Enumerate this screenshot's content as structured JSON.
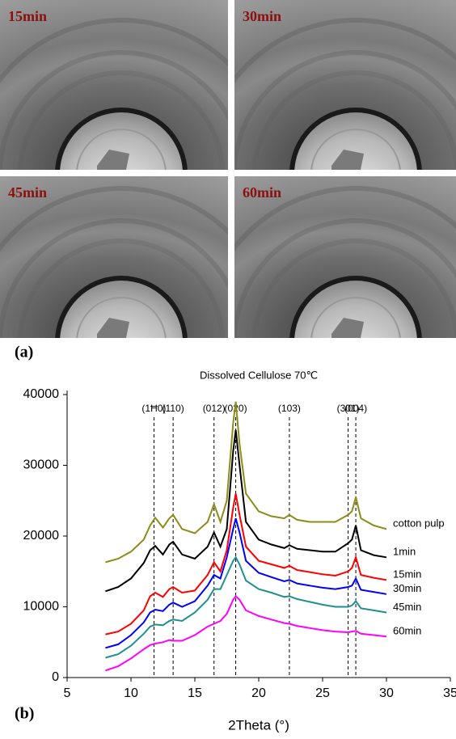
{
  "images": [
    {
      "label": "15min"
    },
    {
      "label": "30min"
    },
    {
      "label": "45min"
    },
    {
      "label": "60min"
    }
  ],
  "figure_labels": {
    "a": "(a)",
    "b": "(b)"
  },
  "chart_data": {
    "type": "line",
    "title": "Dissolved Cellulose 70℃",
    "x_label": "2Theta (°)",
    "x": [
      8,
      9,
      10,
      11,
      11.5,
      11.9,
      12.5,
      13,
      13.3,
      14,
      15,
      16,
      16.5,
      17,
      17.5,
      18,
      18.2,
      18.5,
      19,
      20,
      21,
      22,
      22.4,
      23,
      24,
      25,
      26,
      27,
      27.3,
      27.6,
      28,
      29,
      30
    ],
    "series": [
      {
        "name": "cotton pulp",
        "color": "#8c8c1a",
        "values": [
          16300,
          16800,
          17800,
          19500,
          21500,
          22600,
          21200,
          22500,
          23000,
          21000,
          20400,
          22000,
          24500,
          22000,
          25000,
          36000,
          39000,
          33000,
          26000,
          23500,
          22800,
          22500,
          23000,
          22300,
          22000,
          22000,
          22000,
          23000,
          23500,
          25500,
          22500,
          21500,
          21000
        ]
      },
      {
        "name": "1min",
        "color": "#000000",
        "values": [
          12200,
          12800,
          14000,
          16200,
          18000,
          18600,
          17400,
          18800,
          19200,
          17400,
          16800,
          18500,
          20500,
          18500,
          21000,
          32000,
          35000,
          30000,
          22000,
          19500,
          18800,
          18300,
          18700,
          18200,
          18000,
          17800,
          17800,
          19000,
          19500,
          21500,
          18000,
          17300,
          17000
        ]
      },
      {
        "name": "15min",
        "color": "#ff0000",
        "values": [
          6100,
          6500,
          7600,
          9500,
          11500,
          12000,
          11400,
          12500,
          12800,
          12000,
          12300,
          14500,
          16300,
          15000,
          18000,
          24000,
          26000,
          23000,
          18500,
          16500,
          16000,
          15500,
          15800,
          15200,
          14900,
          14600,
          14400,
          15000,
          15500,
          17000,
          14500,
          14100,
          13800
        ]
      },
      {
        "name": "30min",
        "color": "#0000ff",
        "values": [
          4200,
          4700,
          6000,
          7800,
          9200,
          9600,
          9400,
          10300,
          10600,
          10000,
          10800,
          13000,
          14500,
          14000,
          17000,
          21000,
          22500,
          20500,
          16500,
          14800,
          14200,
          13600,
          13800,
          13300,
          13000,
          12700,
          12500,
          12800,
          13000,
          14000,
          12400,
          12100,
          11800
        ]
      },
      {
        "name": "45min",
        "color": "#1f8f8f",
        "values": [
          2800,
          3300,
          4500,
          6200,
          7200,
          7500,
          7400,
          8000,
          8200,
          8000,
          9200,
          11000,
          12500,
          12500,
          14500,
          16500,
          17000,
          16000,
          13700,
          12500,
          12000,
          11400,
          11500,
          11100,
          10700,
          10300,
          10000,
          10000,
          10200,
          10800,
          9800,
          9500,
          9200
        ]
      },
      {
        "name": "60min",
        "color": "#ff00ff",
        "values": [
          1000,
          1600,
          2700,
          4000,
          4600,
          4800,
          5000,
          5300,
          5200,
          5200,
          6000,
          7200,
          7600,
          8000,
          9000,
          11000,
          11500,
          11000,
          9500,
          8700,
          8200,
          7700,
          7600,
          7300,
          7000,
          6700,
          6500,
          6400,
          6500,
          6600,
          6200,
          6000,
          5800
        ]
      }
    ],
    "annotations": [
      {
        "label": "(1Ħ0)",
        "x": 11.8
      },
      {
        "label": "(110)",
        "x": 13.3
      },
      {
        "label": "(012)",
        "x": 16.5
      },
      {
        "label": "(020)",
        "x": 18.2
      },
      {
        "label": "(103)",
        "x": 22.4
      },
      {
        "label": "(301)",
        "x": 27.0
      },
      {
        "label": "(004)",
        "x": 27.6
      }
    ],
    "xlim": [
      5,
      35
    ],
    "xticks": [
      5,
      10,
      15,
      20,
      25,
      30,
      35
    ],
    "ylim": [
      0,
      40000
    ],
    "yticks": [
      0,
      10000,
      20000,
      30000,
      40000
    ]
  }
}
